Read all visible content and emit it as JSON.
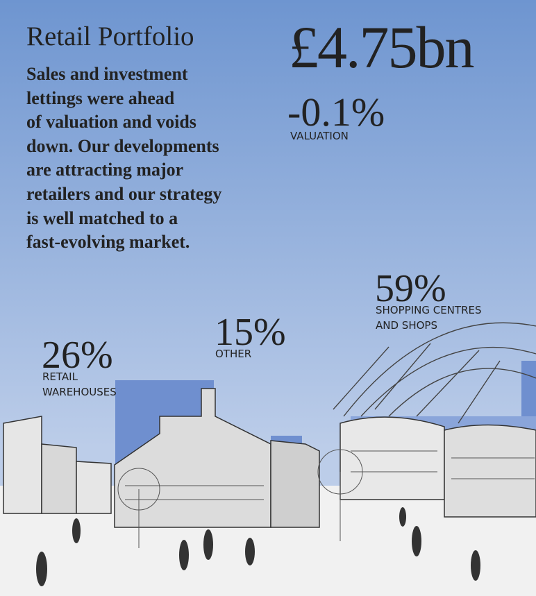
{
  "header": {
    "title": "Retail Portfolio"
  },
  "body": {
    "lines": [
      "Sales and investment",
      "lettings were ahead",
      "of valuation and voids",
      "down. Our developments",
      "are attracting major",
      "retailers and our strategy",
      "is well matched to a",
      "fast-evolving market."
    ]
  },
  "headline": {
    "value": "£4.75bn",
    "change": "-0.1%",
    "change_label": "VALUATION"
  },
  "segments": [
    {
      "share": "26%",
      "label": "RETAIL WAREHOUSES"
    },
    {
      "share": "15%",
      "label": "OTHER"
    },
    {
      "share": "59%",
      "label": "SHOPPING CENTRES AND SHOPS"
    }
  ]
}
